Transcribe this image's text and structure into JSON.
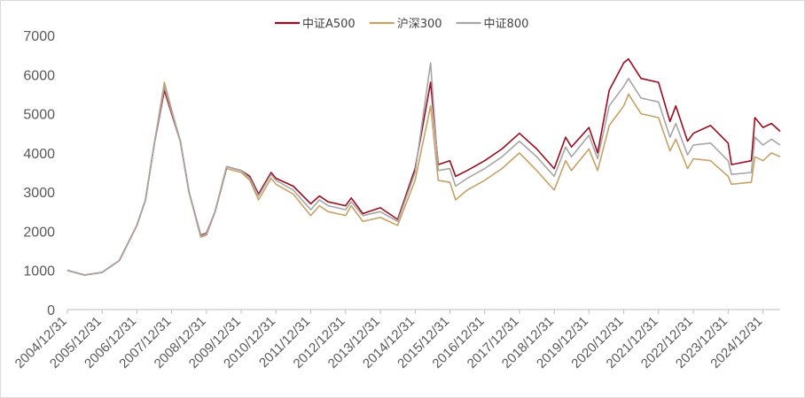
{
  "chart_data": {
    "type": "line",
    "title": "",
    "xlabel": "",
    "ylabel": "",
    "ylim": [
      0,
      7000
    ],
    "yticks": [
      0,
      1000,
      2000,
      3000,
      4000,
      5000,
      6000,
      7000
    ],
    "ytick_labels": [
      "0",
      "1000",
      "2000",
      "3000",
      "4000",
      "5000",
      "6000",
      "7000"
    ],
    "xlim": [
      "2004/12/31",
      "2025/06/30"
    ],
    "xtick_labels": [
      "2004/12/31",
      "2005/12/31",
      "2006/12/31",
      "2007/12/31",
      "2008/12/31",
      "2009/12/31",
      "2010/12/31",
      "2011/12/31",
      "2012/12/31",
      "2013/12/31",
      "2014/12/31",
      "2015/12/31",
      "2016/12/31",
      "2017/12/31",
      "2018/12/31",
      "2019/12/31",
      "2020/12/31",
      "2021/12/31",
      "2022/12/31",
      "2023/12/31",
      "2024/12/31"
    ],
    "grid": false,
    "legend_position": "top-center",
    "x": [
      "2004/12/31",
      "2005/06/30",
      "2005/12/31",
      "2006/06/30",
      "2006/12/31",
      "2007/03/31",
      "2007/06/30",
      "2007/10/16",
      "2007/12/31",
      "2008/03/31",
      "2008/06/30",
      "2008/10/31",
      "2008/12/31",
      "2009/03/31",
      "2009/07/31",
      "2009/12/31",
      "2010/03/31",
      "2010/06/30",
      "2010/11/10",
      "2010/12/31",
      "2011/06/30",
      "2011/12/31",
      "2012/03/31",
      "2012/06/30",
      "2012/12/31",
      "2013/02/28",
      "2013/06/30",
      "2013/12/31",
      "2014/06/30",
      "2014/12/31",
      "2015/06/12",
      "2015/08/31",
      "2015/12/31",
      "2016/02/29",
      "2016/06/30",
      "2016/12/31",
      "2017/06/30",
      "2017/12/31",
      "2018/06/30",
      "2018/12/31",
      "2019/04/30",
      "2019/06/30",
      "2019/12/31",
      "2020/03/31",
      "2020/07/31",
      "2020/12/31",
      "2021/02/18",
      "2021/06/30",
      "2021/12/31",
      "2022/04/30",
      "2022/06/30",
      "2022/10/31",
      "2022/12/31",
      "2023/06/30",
      "2023/12/31",
      "2024/02/05",
      "2024/08/31",
      "2024/10/08",
      "2024/12/31",
      "2025/03/31",
      "2025/06/30"
    ],
    "series": [
      {
        "name": "中证A500",
        "color": "#9b0c1f",
        "values": [
          1000,
          880,
          950,
          1250,
          2150,
          2800,
          4200,
          5600,
          5000,
          4300,
          3000,
          1900,
          1950,
          2500,
          3650,
          3550,
          3400,
          2950,
          3500,
          3350,
          3150,
          2700,
          2900,
          2750,
          2650,
          2850,
          2450,
          2600,
          2300,
          3600,
          5800,
          3700,
          3800,
          3400,
          3550,
          3800,
          4100,
          4500,
          4100,
          3600,
          4400,
          4150,
          4650,
          4000,
          5600,
          6300,
          6400,
          5900,
          5800,
          4800,
          5200,
          4300,
          4500,
          4700,
          4250,
          3700,
          3800,
          4900,
          4650,
          4750,
          4550
        ]
      },
      {
        "name": "沪深300",
        "color": "#c6a264",
        "values": [
          1000,
          880,
          950,
          1250,
          2150,
          2800,
          4200,
          5800,
          5100,
          4300,
          3000,
          1850,
          1900,
          2500,
          3600,
          3500,
          3300,
          2800,
          3350,
          3200,
          2950,
          2400,
          2650,
          2500,
          2400,
          2650,
          2250,
          2350,
          2150,
          3300,
          5200,
          3300,
          3250,
          2800,
          3050,
          3300,
          3600,
          4000,
          3550,
          3050,
          3800,
          3550,
          4100,
          3550,
          4700,
          5200,
          5500,
          5000,
          4900,
          4050,
          4350,
          3600,
          3850,
          3800,
          3400,
          3200,
          3250,
          3900,
          3800,
          4000,
          3900
        ]
      },
      {
        "name": "中证800",
        "color": "#a6a6a6",
        "values": [
          1000,
          880,
          950,
          1250,
          2150,
          2800,
          4200,
          5700,
          5050,
          4300,
          3000,
          1880,
          1930,
          2500,
          3650,
          3550,
          3350,
          2900,
          3450,
          3300,
          3050,
          2550,
          2800,
          2650,
          2550,
          2750,
          2400,
          2500,
          2250,
          3500,
          6300,
          3550,
          3600,
          3150,
          3350,
          3600,
          3900,
          4300,
          3900,
          3400,
          4150,
          3900,
          4450,
          3850,
          5200,
          5700,
          5900,
          5400,
          5300,
          4400,
          4750,
          3950,
          4200,
          4250,
          3800,
          3450,
          3500,
          4400,
          4200,
          4350,
          4200
        ]
      }
    ]
  }
}
